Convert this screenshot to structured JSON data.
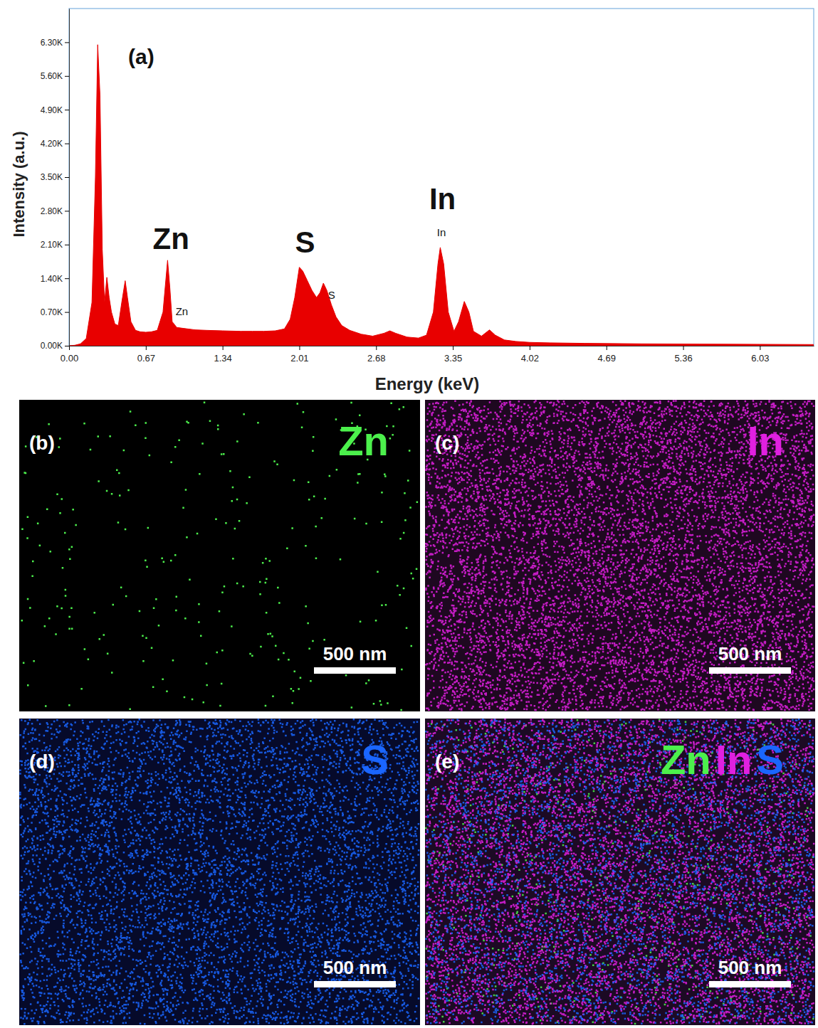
{
  "chart_data": {
    "type": "area",
    "title": "(a)",
    "x_label": "Energy (keV)",
    "y_label": "Intensity (a.u.)",
    "color": "#e80000",
    "grid": false,
    "x": [
      0.0,
      0.05,
      0.1,
      0.15,
      0.2,
      0.23,
      0.25,
      0.27,
      0.29,
      0.31,
      0.33,
      0.35,
      0.37,
      0.4,
      0.43,
      0.46,
      0.49,
      0.51,
      0.54,
      0.58,
      0.62,
      0.67,
      0.72,
      0.77,
      0.82,
      0.86,
      0.88,
      0.9,
      0.94,
      1.0,
      1.1,
      1.2,
      1.34,
      1.5,
      1.6,
      1.7,
      1.8,
      1.88,
      1.93,
      1.97,
      2.01,
      2.04,
      2.08,
      2.12,
      2.16,
      2.19,
      2.22,
      2.25,
      2.29,
      2.33,
      2.38,
      2.45,
      2.55,
      2.65,
      2.75,
      2.8,
      2.85,
      2.95,
      3.05,
      3.12,
      3.18,
      3.22,
      3.24,
      3.27,
      3.31,
      3.36,
      3.4,
      3.45,
      3.49,
      3.53,
      3.6,
      3.67,
      3.72,
      3.8,
      3.9,
      4.02,
      4.2,
      4.5,
      5.0,
      5.5,
      6.03,
      6.5
    ],
    "values": [
      0,
      10,
      40,
      150,
      900,
      3500,
      6250,
      5200,
      2000,
      900,
      1420,
      1000,
      700,
      450,
      420,
      900,
      1350,
      1000,
      500,
      320,
      290,
      280,
      290,
      320,
      700,
      1775,
      1200,
      500,
      380,
      360,
      330,
      320,
      310,
      300,
      300,
      300,
      310,
      350,
      550,
      1000,
      1630,
      1550,
      1350,
      1150,
      1000,
      1100,
      1300,
      1150,
      850,
      600,
      420,
      320,
      240,
      200,
      260,
      310,
      260,
      180,
      160,
      220,
      700,
      1700,
      2040,
      1700,
      700,
      300,
      500,
      920,
      700,
      300,
      200,
      330,
      220,
      120,
      90,
      70,
      60,
      50,
      40,
      35,
      30,
      25
    ],
    "xlim": [
      0,
      6.5
    ],
    "xticks": [
      {
        "value": 0,
        "label": "0.00"
      },
      0.67,
      1.34,
      2.01,
      2.68,
      3.35,
      4.02,
      4.69,
      5.36,
      6.03
    ],
    "ylim": [
      0,
      7000
    ],
    "yticks": [
      {
        "value": 0,
        "label": "0.00K"
      },
      {
        "value": 700,
        "label": "0.70K"
      },
      {
        "value": 1400,
        "label": "1.40K"
      },
      {
        "value": 2100,
        "label": "2.10K"
      },
      {
        "value": 2800,
        "label": "2.80K"
      },
      {
        "value": 3500,
        "label": "3.50K"
      },
      {
        "value": 4200,
        "label": "4.20K"
      },
      {
        "value": 4900,
        "label": "4.90K"
      },
      {
        "value": 5600,
        "label": "5.60K"
      },
      {
        "value": 6300,
        "label": "6.30K"
      }
    ],
    "annotations": [
      {
        "text": "Zn",
        "x": 0.89,
        "y": 2010
      },
      {
        "text": "S",
        "x": 2.06,
        "y": 1940
      },
      {
        "text": "In",
        "x": 3.26,
        "y": 2830
      }
    ],
    "peak_labels": [
      {
        "text": "Zn",
        "x": 0.93,
        "y": 640
      },
      {
        "text": "S",
        "x": 2.26,
        "y": 980
      },
      {
        "text": "In",
        "x": 3.25,
        "y": 2280
      }
    ]
  },
  "maps": [
    {
      "label": "(b)",
      "elements": [
        "Zn"
      ],
      "colors": [
        "#4cf04c"
      ],
      "scale_bar": "500 nm"
    },
    {
      "label": "(c)",
      "elements": [
        "In"
      ],
      "colors": [
        "#e020e0"
      ],
      "scale_bar": "500 nm"
    },
    {
      "label": "(d)",
      "elements": [
        "S"
      ],
      "colors": [
        "#1a66ff"
      ],
      "scale_bar": "500 nm"
    },
    {
      "label": "(e)",
      "elements": [
        "Zn",
        "In",
        "S"
      ],
      "colors": [
        "#4cf04c",
        "#e020e0",
        "#1a66ff"
      ],
      "scale_bar": "500 nm"
    }
  ]
}
